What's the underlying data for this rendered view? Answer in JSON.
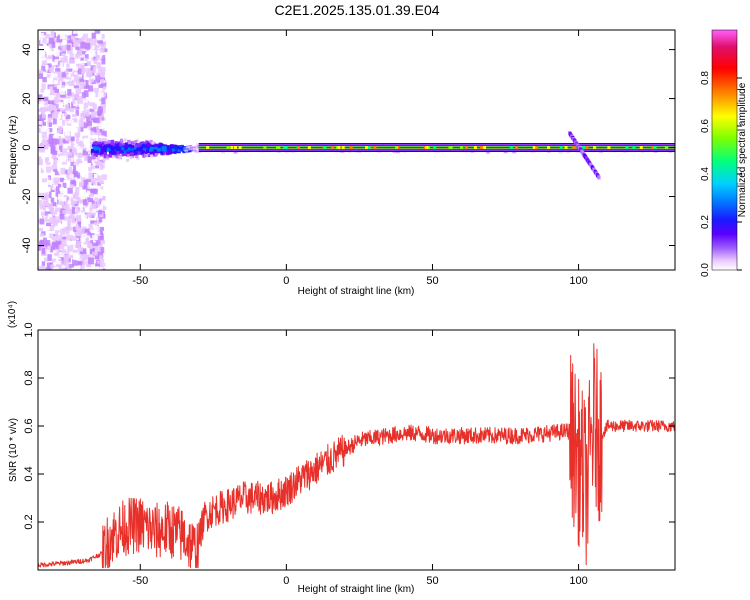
{
  "title": "C2E1.2025.135.01.39.E04",
  "colors": {
    "snr_line": "#e8302a",
    "colormap": [
      "#ffffff",
      "#e9c8ff",
      "#c080ff",
      "#8a30ff",
      "#5a00ff",
      "#1a1aff",
      "#0080ff",
      "#00d0ff",
      "#00ff80",
      "#7fff00",
      "#ffff00",
      "#ff8000",
      "#ff0000",
      "#e0106a",
      "#ff60ff"
    ]
  },
  "chart_data": [
    {
      "type": "heatmap",
      "name": "spectrogram",
      "xlabel": "Height of straight line (km)",
      "ylabel": "Frequency (Hz)",
      "xlim": [
        -85,
        133
      ],
      "ylim": [
        -50,
        48
      ],
      "xticks": [
        -50,
        0,
        50,
        100
      ],
      "yticks": [
        -40,
        -20,
        0,
        20,
        40
      ],
      "colorbar": {
        "label": "Normalized spectral amplitude",
        "range": [
          0.0,
          1.0
        ],
        "ticks": [
          0.0,
          0.2,
          0.4,
          0.6,
          0.8
        ]
      },
      "features": {
        "noise_region_x": [
          -85,
          -63
        ],
        "broadband_region_x": [
          -67,
          -33
        ],
        "carrier_freq_hz": 0,
        "strong_carrier_x": [
          -30,
          133
        ],
        "tail_feature": {
          "x": [
            97,
            107
          ],
          "y": [
            6,
            -12
          ]
        }
      }
    },
    {
      "type": "line",
      "name": "snr",
      "xlabel": "Height of straight line (km)",
      "ylabel": "SNR (10 * v/v)",
      "yscale_label": "(x10⁴)",
      "xlim": [
        -85,
        133
      ],
      "ylim": [
        0,
        1.0
      ],
      "xticks": [
        -50,
        0,
        50,
        100
      ],
      "yticks": [
        0.2,
        0.4,
        0.6,
        0.8,
        1.0
      ],
      "series": [
        {
          "x": [
            -85,
            -75,
            -68,
            -63,
            -60,
            -55,
            -50,
            -45,
            -40,
            -35,
            -31,
            -28,
            -25,
            -20,
            -15,
            -10,
            -5,
            0,
            5,
            10,
            15,
            20,
            25,
            30,
            35,
            40,
            45,
            50,
            60,
            70,
            80,
            90,
            97,
            100,
            103,
            105,
            107,
            110,
            120,
            133
          ],
          "y": [
            0.02,
            0.03,
            0.04,
            0.07,
            0.14,
            0.18,
            0.19,
            0.16,
            0.17,
            0.14,
            0.08,
            0.22,
            0.25,
            0.27,
            0.3,
            0.3,
            0.3,
            0.33,
            0.38,
            0.42,
            0.46,
            0.5,
            0.54,
            0.55,
            0.56,
            0.57,
            0.57,
            0.56,
            0.56,
            0.56,
            0.56,
            0.57,
            0.58,
            0.45,
            0.35,
            0.62,
            0.55,
            0.6,
            0.6,
            0.6
          ]
        }
      ]
    }
  ]
}
